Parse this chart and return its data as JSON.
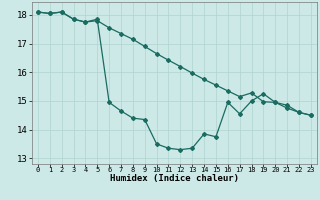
{
  "xlabel": "Humidex (Indice chaleur)",
  "ylabel": "",
  "bg_color": "#cce9e7",
  "grid_color": "#b0d4d0",
  "line_color": "#1a6b60",
  "xlim": [
    -0.5,
    23.5
  ],
  "ylim": [
    12.8,
    18.45
  ],
  "xticks": [
    0,
    1,
    2,
    3,
    4,
    5,
    6,
    7,
    8,
    9,
    10,
    11,
    12,
    13,
    14,
    15,
    16,
    17,
    18,
    19,
    20,
    21,
    22,
    23
  ],
  "yticks": [
    13,
    14,
    15,
    16,
    17,
    18
  ],
  "line1_x": [
    0,
    1,
    2,
    3,
    4,
    5,
    6,
    7,
    8,
    9,
    10,
    11,
    12,
    13,
    14,
    15,
    16,
    17,
    18,
    19,
    20,
    21,
    22,
    23
  ],
  "line1_y": [
    18.1,
    18.05,
    18.1,
    17.85,
    17.75,
    17.8,
    17.55,
    17.35,
    17.15,
    16.9,
    16.65,
    16.42,
    16.2,
    15.97,
    15.75,
    15.55,
    15.35,
    15.15,
    15.28,
    14.97,
    14.95,
    14.75,
    14.6,
    14.5
  ],
  "line2_x": [
    0,
    1,
    2,
    3,
    4,
    5,
    6,
    7,
    8,
    9,
    10,
    11,
    12,
    13,
    14,
    15,
    16,
    17,
    18,
    19,
    20,
    21,
    22,
    23
  ],
  "line2_y": [
    18.1,
    18.05,
    18.1,
    17.85,
    17.75,
    17.85,
    14.95,
    14.65,
    14.4,
    14.35,
    13.5,
    13.35,
    13.3,
    13.35,
    13.85,
    13.75,
    14.95,
    14.55,
    15.0,
    15.25,
    14.95,
    14.85,
    14.6,
    14.5
  ]
}
